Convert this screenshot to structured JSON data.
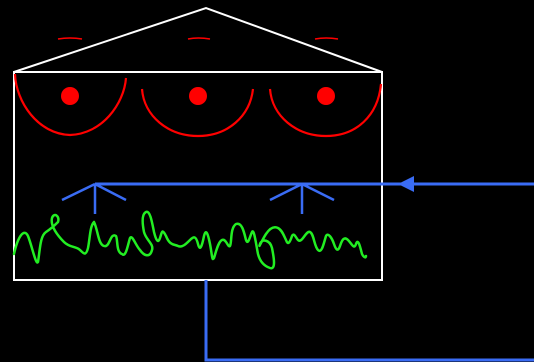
{
  "diagram": {
    "colors": {
      "background": "#000000",
      "structure": "#ffffff",
      "heaters": "#ff0000",
      "pipes": "#3a6cf4",
      "plants": "#22ee22"
    },
    "components": {
      "building": "greenhouse-with-pitched-roof",
      "heater_count": 3,
      "sprinkler_count": 2
    }
  }
}
